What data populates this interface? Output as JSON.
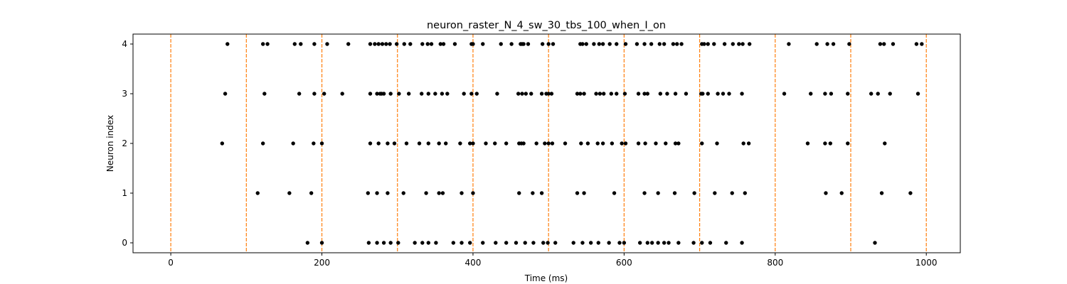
{
  "chart_data": {
    "type": "scatter",
    "title": "neuron_raster_N_4_sw_30_tbs_100_when_I_on",
    "xlabel": "Time (ms)",
    "ylabel": "Neuron index",
    "xlim": [
      -50,
      1045
    ],
    "ylim": [
      -0.2,
      4.2
    ],
    "xticks": [
      0,
      200,
      400,
      600,
      800,
      1000
    ],
    "yticks": [
      0,
      1,
      2,
      3,
      4
    ],
    "grid": false,
    "legend": "none",
    "marker_color": "#000000",
    "vline_color": "#ff7f0e",
    "vlines": [
      0,
      100,
      200,
      300,
      400,
      500,
      600,
      700,
      800,
      900,
      1000
    ],
    "spikes": [
      {
        "neuron": 4,
        "times": [
          75,
          122,
          128,
          164,
          172,
          190,
          207,
          235,
          264,
          270,
          275,
          280,
          285,
          290,
          299,
          309,
          317,
          333,
          340,
          345,
          357,
          361,
          376,
          398,
          400,
          413,
          437,
          451,
          463,
          465,
          467,
          473,
          492,
          500,
          506,
          542,
          545,
          550,
          560,
          567,
          572,
          581,
          590,
          602,
          617,
          627,
          636,
          647,
          653,
          665,
          670,
          676,
          703,
          706,
          711,
          719,
          733,
          744,
          752,
          757,
          766,
          818,
          855,
          869,
          877,
          898,
          939,
          944,
          956,
          987,
          994
        ]
      },
      {
        "neuron": 3,
        "times": [
          72,
          124,
          170,
          190,
          203,
          227,
          264,
          273,
          277,
          279,
          282,
          291,
          302,
          315,
          332,
          341,
          350,
          359,
          366,
          388,
          398,
          405,
          432,
          460,
          465,
          470,
          477,
          491,
          497,
          500,
          504,
          538,
          542,
          547,
          563,
          568,
          573,
          583,
          590,
          601,
          619,
          627,
          631,
          648,
          657,
          668,
          682,
          702,
          704,
          711,
          724,
          731,
          739,
          756,
          812,
          847,
          866,
          874,
          896,
          927,
          936,
          952,
          989
        ]
      },
      {
        "neuron": 2,
        "times": [
          68,
          122,
          162,
          189,
          200,
          264,
          275,
          287,
          296,
          312,
          329,
          341,
          355,
          364,
          383,
          396,
          400,
          417,
          429,
          444,
          461,
          464,
          467,
          484,
          495,
          500,
          505,
          522,
          543,
          552,
          565,
          572,
          584,
          597,
          602,
          619,
          628,
          642,
          655,
          668,
          672,
          703,
          723,
          758,
          765,
          843,
          866,
          873,
          896,
          945
        ]
      },
      {
        "neuron": 1,
        "times": [
          115,
          157,
          186,
          261,
          273,
          287,
          308,
          338,
          355,
          360,
          385,
          400,
          461,
          479,
          491,
          538,
          547,
          587,
          627,
          645,
          667,
          693,
          720,
          743,
          760,
          867,
          888,
          941,
          979
        ]
      },
      {
        "neuron": 0,
        "times": [
          181,
          200,
          262,
          273,
          282,
          291,
          301,
          323,
          333,
          341,
          351,
          374,
          385,
          396,
          413,
          430,
          444,
          457,
          469,
          480,
          493,
          499,
          509,
          533,
          545,
          556,
          566,
          580,
          594,
          600,
          621,
          631,
          637,
          645,
          653,
          659,
          672,
          692,
          703,
          714,
          735,
          756,
          932
        ]
      }
    ]
  }
}
